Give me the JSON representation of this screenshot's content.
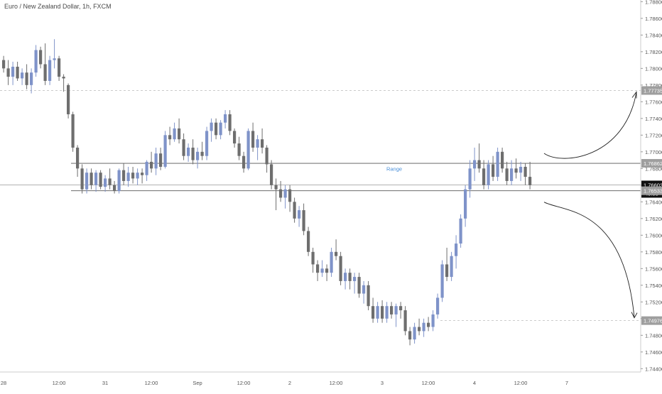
{
  "header": {
    "symbol_title": "Euro / New Zealand Dollar, 1h, FXCM"
  },
  "colors": {
    "bull": "#7f93c9",
    "bear": "#6e6e6e",
    "axis_text": "#555555",
    "grid": "#eeeeee",
    "range_label": "#4a90d9",
    "dashed": "#bbbbbb",
    "line": "#555555",
    "arrow": "#222222",
    "badge_bg": "#9e9e9e",
    "badge_dark": "#111111",
    "badge_text": "#ffffff"
  },
  "annotations": {
    "range_label": "Range",
    "countdown": "45:58"
  },
  "chart_data": {
    "type": "candlestick",
    "title": "Euro / New Zealand Dollar, 1h, FXCM",
    "ylim": [
      1.7436,
      1.7882
    ],
    "price_ticks": [
      "1.78800",
      "1.78600",
      "1.78400",
      "1.78200",
      "1.78000",
      "1.77800",
      "1.77600",
      "1.77400",
      "1.77200",
      "1.77000",
      "1.76800",
      "1.76600",
      "1.76400",
      "1.76200",
      "1.76000",
      "1.75800",
      "1.75600",
      "1.75400",
      "1.75200",
      "1.75000",
      "1.74800",
      "1.74600",
      "1.74400"
    ],
    "time_ticks": [
      {
        "label": "28",
        "bar": 0
      },
      {
        "label": "12:00",
        "bar": 12
      },
      {
        "label": "31",
        "bar": 22
      },
      {
        "label": "12:00",
        "bar": 32
      },
      {
        "label": "Sep",
        "bar": 42
      },
      {
        "label": "12:00",
        "bar": 52
      },
      {
        "label": "2",
        "bar": 62
      },
      {
        "label": "12:00",
        "bar": 72
      },
      {
        "label": "3",
        "bar": 82
      },
      {
        "label": "12:00",
        "bar": 92
      },
      {
        "label": "4",
        "bar": 102
      },
      {
        "label": "12:00",
        "bar": 112
      },
      {
        "label": "7",
        "bar": 122
      }
    ],
    "levels": {
      "upper_target": {
        "value": 1.77735,
        "label": "1.77735"
      },
      "range_high": {
        "value": 1.76862,
        "label": "1.76862"
      },
      "current": {
        "value": 1.76603,
        "label": "1.76603"
      },
      "range_low": {
        "value": 1.76533,
        "label": "1.76533"
      },
      "lower_target": {
        "value": 1.74976,
        "label": "1.74976"
      }
    },
    "candles": [
      [
        1.781,
        1.7815,
        1.7795,
        1.78
      ],
      [
        1.78,
        1.781,
        1.778,
        1.779
      ],
      [
        1.779,
        1.7808,
        1.778,
        1.7802
      ],
      [
        1.7802,
        1.7808,
        1.7785,
        1.7788
      ],
      [
        1.7788,
        1.78,
        1.778,
        1.7795
      ],
      [
        1.7795,
        1.7805,
        1.7775,
        1.778
      ],
      [
        1.778,
        1.78,
        1.777,
        1.7795
      ],
      [
        1.7795,
        1.7828,
        1.779,
        1.7822
      ],
      [
        1.7822,
        1.7826,
        1.78,
        1.7805
      ],
      [
        1.7805,
        1.783,
        1.778,
        1.7785
      ],
      [
        1.7785,
        1.7815,
        1.778,
        1.781
      ],
      [
        1.781,
        1.7835,
        1.78,
        1.7812
      ],
      [
        1.7812,
        1.7815,
        1.7785,
        1.779
      ],
      [
        1.779,
        1.7793,
        1.7772,
        1.7788
      ],
      [
        1.778,
        1.7782,
        1.774,
        1.7745
      ],
      [
        1.7745,
        1.7748,
        1.77,
        1.7705
      ],
      [
        1.7705,
        1.7708,
        1.767,
        1.768
      ],
      [
        1.768,
        1.7685,
        1.765,
        1.7655
      ],
      [
        1.7655,
        1.768,
        1.765,
        1.7675
      ],
      [
        1.7675,
        1.768,
        1.7655,
        1.766
      ],
      [
        1.766,
        1.7678,
        1.7652,
        1.7675
      ],
      [
        1.7675,
        1.7678,
        1.7655,
        1.7658
      ],
      [
        1.7658,
        1.7672,
        1.7652,
        1.7668
      ],
      [
        1.7668,
        1.768,
        1.7655,
        1.766
      ],
      [
        1.766,
        1.7665,
        1.765,
        1.7653
      ],
      [
        1.7653,
        1.768,
        1.765,
        1.7678
      ],
      [
        1.7678,
        1.7686,
        1.766,
        1.7665
      ],
      [
        1.7665,
        1.7682,
        1.7658,
        1.7675
      ],
      [
        1.7675,
        1.7682,
        1.7662,
        1.7668
      ],
      [
        1.7668,
        1.768,
        1.766,
        1.7675
      ],
      [
        1.7675,
        1.768,
        1.7662,
        1.7672
      ],
      [
        1.7672,
        1.769,
        1.7665,
        1.7688
      ],
      [
        1.7688,
        1.77,
        1.7675,
        1.768
      ],
      [
        1.768,
        1.7705,
        1.7672,
        1.7698
      ],
      [
        1.7698,
        1.7705,
        1.7678,
        1.7682
      ],
      [
        1.7682,
        1.7725,
        1.768,
        1.772
      ],
      [
        1.772,
        1.773,
        1.7708,
        1.7715
      ],
      [
        1.7715,
        1.7735,
        1.7712,
        1.7728
      ],
      [
        1.7728,
        1.774,
        1.771,
        1.7715
      ],
      [
        1.7715,
        1.7722,
        1.769,
        1.7695
      ],
      [
        1.7695,
        1.771,
        1.7688,
        1.7705
      ],
      [
        1.7705,
        1.7715,
        1.7685,
        1.769
      ],
      [
        1.769,
        1.7705,
        1.768,
        1.77
      ],
      [
        1.77,
        1.7712,
        1.769,
        1.7695
      ],
      [
        1.7695,
        1.773,
        1.769,
        1.7725
      ],
      [
        1.7725,
        1.774,
        1.7712,
        1.7735
      ],
      [
        1.7735,
        1.774,
        1.7715,
        1.772
      ],
      [
        1.772,
        1.7738,
        1.7715,
        1.7735
      ],
      [
        1.7735,
        1.775,
        1.7728,
        1.7745
      ],
      [
        1.7745,
        1.775,
        1.772,
        1.7725
      ],
      [
        1.7725,
        1.7728,
        1.7705,
        1.771
      ],
      [
        1.771,
        1.7718,
        1.769,
        1.7695
      ],
      [
        1.7695,
        1.77,
        1.7675,
        1.768
      ],
      [
        1.768,
        1.7728,
        1.7678,
        1.7725
      ],
      [
        1.7725,
        1.7735,
        1.77,
        1.7705
      ],
      [
        1.7705,
        1.772,
        1.769,
        1.7715
      ],
      [
        1.7715,
        1.7728,
        1.7698,
        1.7705
      ],
      [
        1.7705,
        1.7708,
        1.7675,
        1.7685
      ],
      [
        1.7685,
        1.769,
        1.7655,
        1.766
      ],
      [
        1.766,
        1.7668,
        1.763,
        1.7655
      ],
      [
        1.7655,
        1.7665,
        1.764,
        1.7645
      ],
      [
        1.7645,
        1.766,
        1.7632,
        1.7655
      ],
      [
        1.7655,
        1.766,
        1.7628,
        1.764
      ],
      [
        1.764,
        1.7645,
        1.7615,
        1.762
      ],
      [
        1.762,
        1.7635,
        1.761,
        1.763
      ],
      [
        1.763,
        1.7638,
        1.76,
        1.7605
      ],
      [
        1.7605,
        1.761,
        1.7575,
        1.758
      ],
      [
        1.758,
        1.7585,
        1.7555,
        1.7565
      ],
      [
        1.7565,
        1.757,
        1.7545,
        1.7555
      ],
      [
        1.7555,
        1.757,
        1.755,
        1.756
      ],
      [
        1.756,
        1.7565,
        1.7545,
        1.7555
      ],
      [
        1.7555,
        1.7585,
        1.755,
        1.758
      ],
      [
        1.758,
        1.7595,
        1.757,
        1.7575
      ],
      [
        1.7575,
        1.758,
        1.754,
        1.7545
      ],
      [
        1.7545,
        1.756,
        1.7535,
        1.7555
      ],
      [
        1.7555,
        1.756,
        1.7535,
        1.7545
      ],
      [
        1.7545,
        1.7555,
        1.753,
        1.755
      ],
      [
        1.755,
        1.7555,
        1.7525,
        1.753
      ],
      [
        1.753,
        1.7545,
        1.7518,
        1.754
      ],
      [
        1.754,
        1.7545,
        1.751,
        1.7515
      ],
      [
        1.7515,
        1.7525,
        1.7495,
        1.75
      ],
      [
        1.75,
        1.752,
        1.7495,
        1.7515
      ],
      [
        1.7515,
        1.7522,
        1.7495,
        1.75
      ],
      [
        1.75,
        1.752,
        1.7495,
        1.7515
      ],
      [
        1.7515,
        1.752,
        1.75,
        1.7505
      ],
      [
        1.7505,
        1.7518,
        1.749,
        1.7515
      ],
      [
        1.7515,
        1.752,
        1.75,
        1.751
      ],
      [
        1.751,
        1.7515,
        1.748,
        1.7485
      ],
      [
        1.7485,
        1.749,
        1.7468,
        1.7475
      ],
      [
        1.7475,
        1.7495,
        1.747,
        1.749
      ],
      [
        1.749,
        1.75,
        1.748,
        1.7485
      ],
      [
        1.7485,
        1.75,
        1.7478,
        1.7495
      ],
      [
        1.7495,
        1.7502,
        1.7485,
        1.749
      ],
      [
        1.749,
        1.751,
        1.7485,
        1.7505
      ],
      [
        1.7505,
        1.753,
        1.75,
        1.7525
      ],
      [
        1.7525,
        1.757,
        1.752,
        1.7565
      ],
      [
        1.7565,
        1.7585,
        1.7545,
        1.755
      ],
      [
        1.755,
        1.758,
        1.7545,
        1.7575
      ],
      [
        1.7575,
        1.76,
        1.756,
        1.759
      ],
      [
        1.759,
        1.7625,
        1.7585,
        1.762
      ],
      [
        1.762,
        1.766,
        1.761,
        1.7655
      ],
      [
        1.7655,
        1.769,
        1.7645,
        1.768
      ],
      [
        1.768,
        1.7705,
        1.7665,
        1.769
      ],
      [
        1.769,
        1.771,
        1.7675,
        1.768
      ],
      [
        1.768,
        1.769,
        1.7655,
        1.766
      ],
      [
        1.766,
        1.769,
        1.7655,
        1.7685
      ],
      [
        1.7685,
        1.7695,
        1.7665,
        1.767
      ],
      [
        1.767,
        1.7705,
        1.7665,
        1.77
      ],
      [
        1.77,
        1.7705,
        1.7675,
        1.768
      ],
      [
        1.768,
        1.7688,
        1.766,
        1.7665
      ],
      [
        1.7665,
        1.769,
        1.766,
        1.768
      ],
      [
        1.768,
        1.7692,
        1.7668,
        1.7675
      ],
      [
        1.7675,
        1.7688,
        1.7665,
        1.7682
      ],
      [
        1.7682,
        1.7686,
        1.766,
        1.767
      ],
      [
        1.767,
        1.7688,
        1.7655,
        1.766
      ]
    ]
  }
}
